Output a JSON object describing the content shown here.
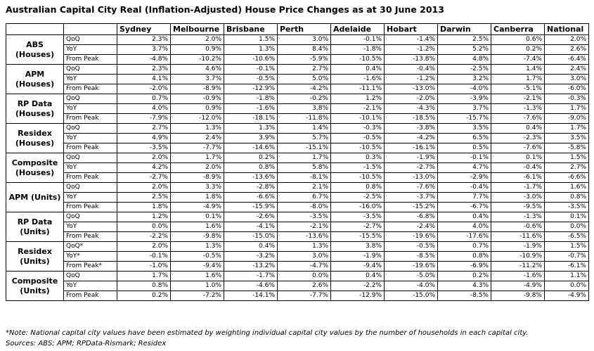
{
  "title": "Australian Capital City Real (Inflation-Adjusted) House Price Changes as at 30 June 2013",
  "columns": [
    "Sydney",
    "Melbourne",
    "Brisbane",
    "Perth",
    "Adelaide",
    "Hobart",
    "Darwin",
    "Canberra",
    "National"
  ],
  "groups": [
    {
      "name": "ABS\n(Houses)",
      "rows": [
        {
          "label": "QoQ",
          "values": [
            "2.3%",
            "2.0%",
            "1.5%",
            "3.0%",
            "-0.1%",
            "-1.4%",
            "2.5%",
            "0.6%",
            "2.0%"
          ]
        },
        {
          "label": "YoY",
          "values": [
            "3.7%",
            "0.9%",
            "1.3%",
            "8.4%",
            "-1.8%",
            "-1.2%",
            "5.2%",
            "0.2%",
            "2.6%"
          ]
        },
        {
          "label": "From Peak",
          "values": [
            "-4.8%",
            "-10.2%",
            "-10.6%",
            "-5.9%",
            "-10.5%",
            "-13.8%",
            "4.8%",
            "-7.4%",
            "-6.4%"
          ]
        }
      ]
    },
    {
      "name": "APM\n(Houses)",
      "rows": [
        {
          "label": "QoQ",
          "values": [
            "2.3%",
            "4.6%",
            "-0.1%",
            "2.7%",
            "0.4%",
            "-0.4%",
            "-2.5%",
            "1.4%",
            "2.4%"
          ]
        },
        {
          "label": "YoY",
          "values": [
            "4.1%",
            "3.7%",
            "-0.5%",
            "5.0%",
            "-1.6%",
            "-1.2%",
            "3.2%",
            "1.7%",
            "3.0%"
          ]
        },
        {
          "label": "From Peak",
          "values": [
            "-2.0%",
            "-8.9%",
            "-12.9%",
            "-4.2%",
            "-11.1%",
            "-13.0%",
            "-4.0%",
            "-5.1%",
            "-6.0%"
          ]
        }
      ]
    },
    {
      "name": "RP Data\n(Houses)",
      "rows": [
        {
          "label": "QoQ",
          "values": [
            "0.7%",
            "-0.9%",
            "-1.8%",
            "-0.2%",
            "1.2%",
            "-2.0%",
            "-3.9%",
            "-2.1%",
            "-0.3%"
          ]
        },
        {
          "label": "YoY",
          "values": [
            "4.0%",
            "0.9%",
            "-1.6%",
            "3.8%",
            "-2.1%",
            "-4.3%",
            "3.7%",
            "-1.3%",
            "1.7%"
          ]
        },
        {
          "label": "From Peak",
          "values": [
            "-7.9%",
            "-12.0%",
            "-18.1%",
            "-11.8%",
            "-10.1%",
            "-18.5%",
            "-15.7%",
            "-7.6%",
            "-9.0%"
          ]
        }
      ]
    },
    {
      "name": "Residex\n(Houses)",
      "rows": [
        {
          "label": "QoQ",
          "values": [
            "2.7%",
            "1.3%",
            "1.3%",
            "1.4%",
            "-0.3%",
            "-3.8%",
            "3.5%",
            "0.4%",
            "1.7%"
          ]
        },
        {
          "label": "YoY",
          "values": [
            "4.9%",
            "2.4%",
            "3.9%",
            "5.7%",
            "-0.5%",
            "-4.2%",
            "6.5%",
            "-2.3%",
            "3.5%"
          ]
        },
        {
          "label": "From Peak",
          "values": [
            "-3.5%",
            "-7.7%",
            "-14.6%",
            "-15.1%",
            "-10.5%",
            "-16.1%",
            "0.5%",
            "-7.6%",
            "-5.8%"
          ]
        }
      ]
    },
    {
      "name": "Composite\n(Houses)",
      "rows": [
        {
          "label": "QoQ",
          "values": [
            "2.0%",
            "1.7%",
            "0.2%",
            "1.7%",
            "0.3%",
            "-1.9%",
            "-0.1%",
            "0.1%",
            "1.5%"
          ]
        },
        {
          "label": "YoY",
          "values": [
            "4.2%",
            "2.0%",
            "0.8%",
            "5.8%",
            "-1.5%",
            "-2.7%",
            "4.7%",
            "-0.4%",
            "2.7%"
          ]
        },
        {
          "label": "From Peak",
          "values": [
            "-2.7%",
            "-8.9%",
            "-13.6%",
            "-8.1%",
            "-10.5%",
            "-13.0%",
            "-2.9%",
            "-6.1%",
            "-6.6%"
          ]
        }
      ]
    },
    {
      "name": "APM (Units)",
      "rows": [
        {
          "label": "QoQ",
          "values": [
            "2.0%",
            "3.3%",
            "-2.8%",
            "2.1%",
            "0.8%",
            "-7.6%",
            "-0.4%",
            "-1.7%",
            "1.6%"
          ]
        },
        {
          "label": "YoY",
          "values": [
            "2.5%",
            "1.8%",
            "-6.6%",
            "6.7%",
            "-2.5%",
            "-3.7%",
            "7.7%",
            "-3.0%",
            "0.8%"
          ]
        },
        {
          "label": "From Peak",
          "values": [
            "1.8%",
            "-4.9%",
            "-15.9%",
            "-8.0%",
            "-16.0%",
            "-15.2%",
            "-6.7%",
            "-9.5%",
            "-3.5%"
          ]
        }
      ]
    },
    {
      "name": "RP Data\n(Units)",
      "rows": [
        {
          "label": "QoQ",
          "values": [
            "1.2%",
            "0.1%",
            "-2.6%",
            "-3.5%",
            "-3.5%",
            "-6.8%",
            "0.4%",
            "-1.3%",
            "0.1%"
          ]
        },
        {
          "label": "YoY",
          "values": [
            "0.0%",
            "1.6%",
            "-4.1%",
            "-2.1%",
            "-2.7%",
            "-2.4%",
            "4.0%",
            "-0.6%",
            "0.0%"
          ]
        },
        {
          "label": "From Peak",
          "values": [
            "-2.2%",
            "-9.8%",
            "-15.0%",
            "-13.6%",
            "-15.5%",
            "-19.6%",
            "-17.6%",
            "-11.6%",
            "-6.5%"
          ]
        }
      ]
    },
    {
      "name": "Residex\n(Units)",
      "rows": [
        {
          "label": "QoQ*",
          "values": [
            "2.0%",
            "1.3%",
            "0.4%",
            "1.3%",
            "3.8%",
            "-0.5%",
            "0.7%",
            "-1.9%",
            "1.5%"
          ]
        },
        {
          "label": "YoY*",
          "values": [
            "-0.1%",
            "-0.5%",
            "-3.2%",
            "3.0%",
            "-1.9%",
            "-8.5%",
            "0.8%",
            "-10.9%",
            "-0.7%"
          ]
        },
        {
          "label": "From Peak*",
          "values": [
            "-1.0%",
            "-9.4%",
            "-13.2%",
            "-4.7%",
            "-9.4%",
            "-19.6%",
            "-6.9%",
            "-11.2%",
            "-6.1%"
          ]
        }
      ]
    },
    {
      "name": "Composite\n(Units)",
      "rows": [
        {
          "label": "QoQ",
          "values": [
            "1.7%",
            "1.6%",
            "-1.7%",
            "0.0%",
            "0.4%",
            "-5.0%",
            "0.2%",
            "-1.6%",
            "1.1%"
          ]
        },
        {
          "label": "YoY",
          "values": [
            "0.8%",
            "1.0%",
            "-4.6%",
            "2.6%",
            "-2.2%",
            "-4.0%",
            "4.3%",
            "-4.9%",
            "0.0%"
          ]
        },
        {
          "label": "From Peak",
          "values": [
            "0.2%",
            "-7.2%",
            "-14.1%",
            "-7.7%",
            "-12.9%",
            "-15.0%",
            "-8.5%",
            "-9.8%",
            "-4.9%"
          ]
        }
      ]
    }
  ],
  "notes": {
    "note": "*Note: National capital city values have been estimated by weighting individual capital city values by the number of households in each capital city.",
    "sources": "Sources: ABS; APM; RPData-Rismark; Residex"
  }
}
